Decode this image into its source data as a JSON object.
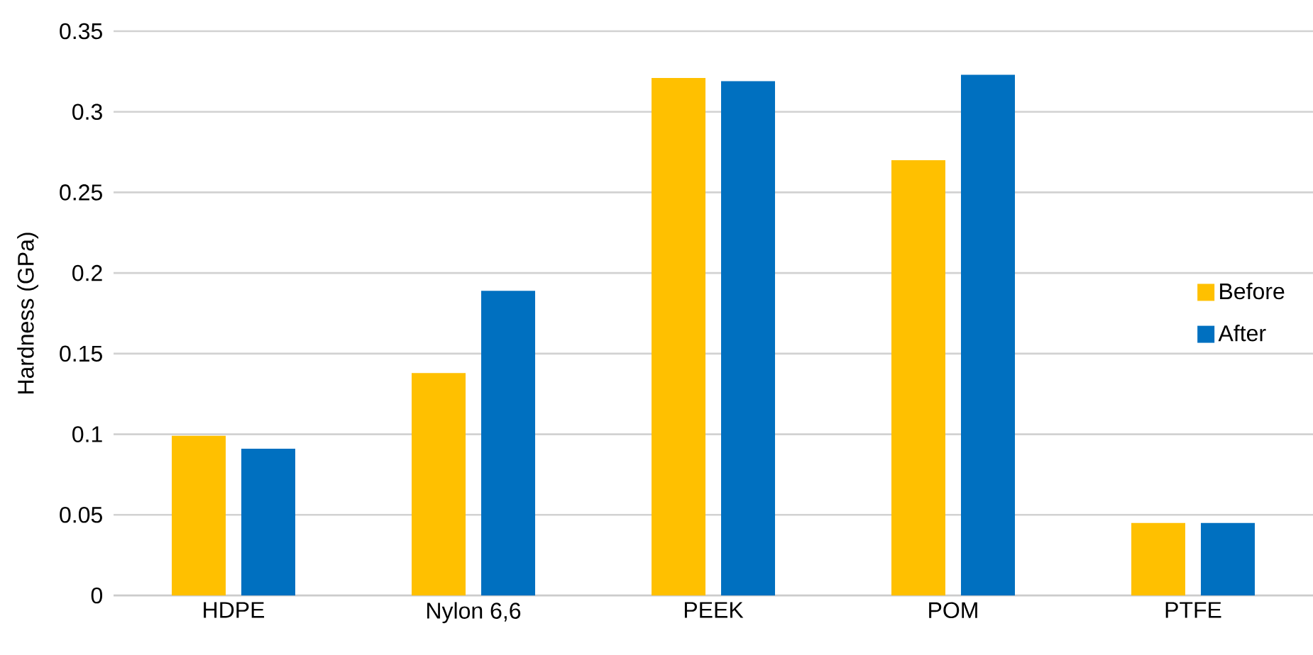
{
  "chart_data": {
    "type": "bar",
    "ylabel": "Hardness (GPa)",
    "categories": [
      "HDPE",
      "Nylon 6,6",
      "PEEK",
      "POM",
      "PTFE"
    ],
    "series": [
      {
        "name": "Before",
        "color": "#ffc000",
        "values": [
          0.099,
          0.138,
          0.321,
          0.27,
          0.045
        ]
      },
      {
        "name": "After",
        "color": "#0070c0",
        "values": [
          0.091,
          0.189,
          0.319,
          0.323,
          0.045
        ]
      }
    ],
    "ylim": [
      0,
      0.35
    ],
    "yticks": [
      0,
      0.05,
      0.1,
      0.15,
      0.2,
      0.25,
      0.3,
      0.35
    ],
    "grid": "y",
    "legend": "right"
  }
}
